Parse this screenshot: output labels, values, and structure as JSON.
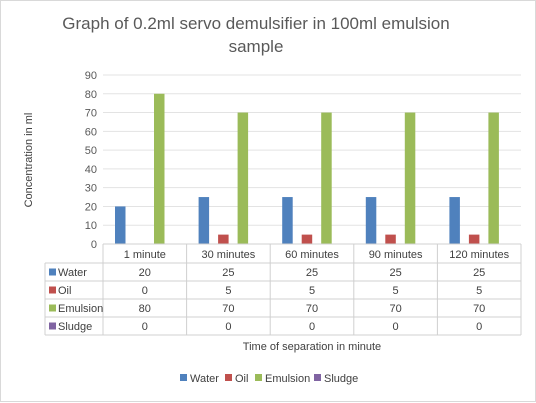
{
  "chart_data": {
    "type": "bar",
    "title_line1": "Graph of 0.2ml servo demulsifier in 100ml emulsion",
    "title_line2": "sample",
    "xlabel": "Time of separation in minute",
    "ylabel": "Concentration in ml",
    "ylim": [
      0,
      90
    ],
    "yticks": [
      "0",
      "10",
      "20",
      "30",
      "40",
      "50",
      "60",
      "70",
      "80",
      "90"
    ],
    "grid": true,
    "legend_position": "bottom",
    "data_table": true,
    "categories": [
      "1 minute",
      "30 minutes",
      "60 minutes",
      "90 minutes",
      "120 minutes"
    ],
    "series": [
      {
        "name": "Water",
        "values": [
          20,
          25,
          25,
          25,
          25
        ],
        "color": "#4f81bd"
      },
      {
        "name": "Oil",
        "values": [
          0,
          5,
          5,
          5,
          5
        ],
        "color": "#c0504d"
      },
      {
        "name": "Emulsion",
        "values": [
          80,
          70,
          70,
          70,
          70
        ],
        "color": "#9bbb59"
      },
      {
        "name": "Sludge",
        "values": [
          0,
          0,
          0,
          0,
          0
        ],
        "color": "#8064a2"
      }
    ]
  }
}
